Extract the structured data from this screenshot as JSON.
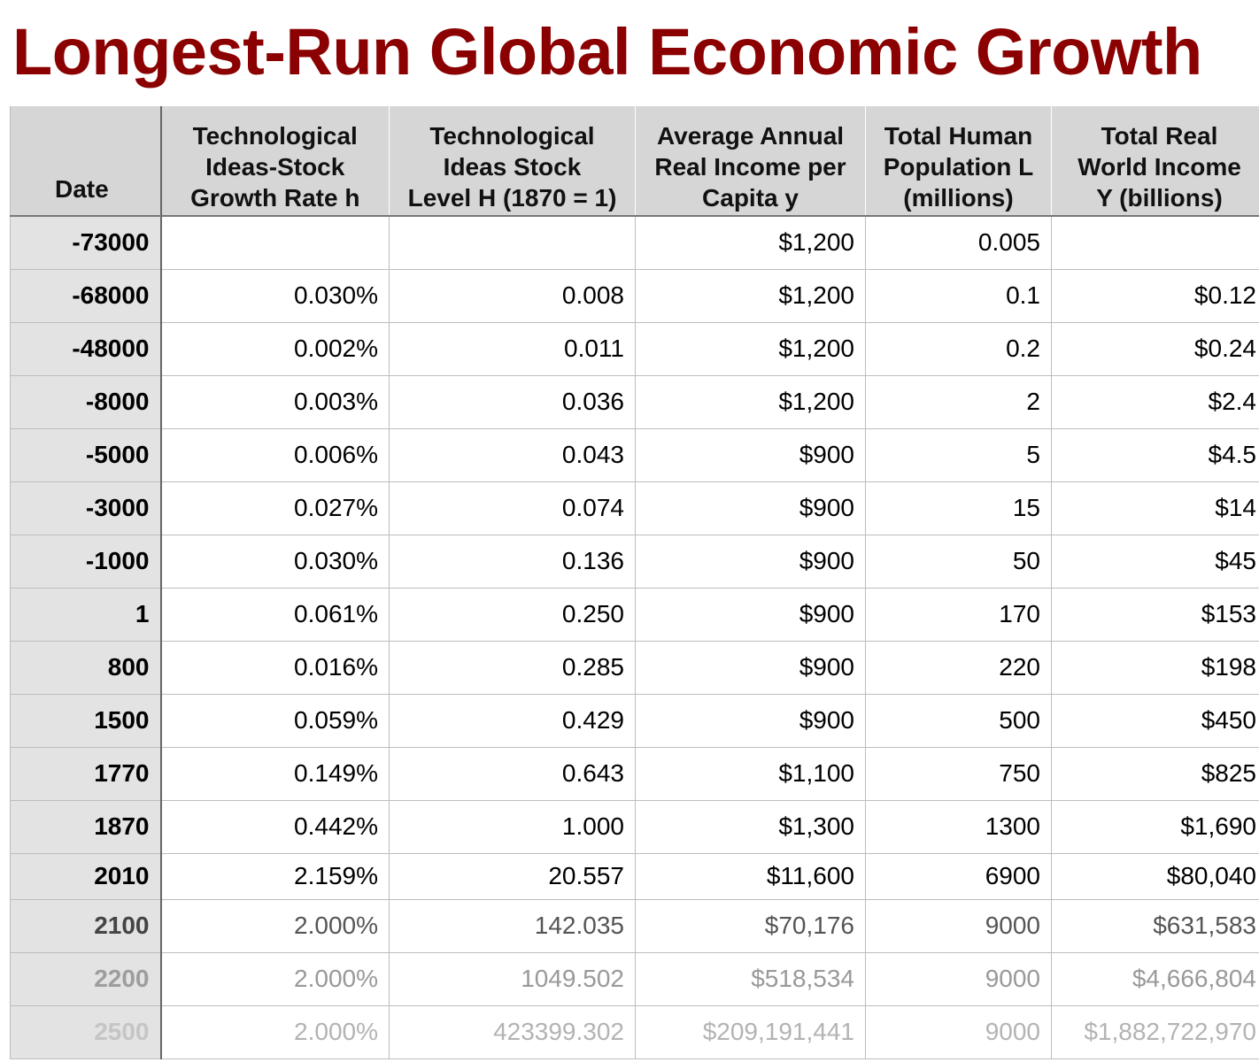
{
  "title": "Longest-Run Global Economic Growth",
  "chart_data": {
    "type": "table",
    "title": "Longest-Run Global Economic Growth",
    "columns": [
      "Date",
      "Technological Ideas-Stock Growth Rate h",
      "Technological Ideas Stock Level H (1870 = 1)",
      "Average Annual Real Income per Capita y",
      "Total Human Population L (millions)",
      "Total Real World Income Y (billions)"
    ],
    "rows": [
      [
        "-73000",
        "",
        "",
        "$1,200",
        "0.005",
        ""
      ],
      [
        "-68000",
        "0.030%",
        "0.008",
        "$1,200",
        "0.1",
        "$0.12"
      ],
      [
        "-48000",
        "0.002%",
        "0.011",
        "$1,200",
        "0.2",
        "$0.24"
      ],
      [
        "-8000",
        "0.003%",
        "0.036",
        "$1,200",
        "2",
        "$2.4"
      ],
      [
        "-5000",
        "0.006%",
        "0.043",
        "$900",
        "5",
        "$4.5"
      ],
      [
        "-3000",
        "0.027%",
        "0.074",
        "$900",
        "15",
        "$14"
      ],
      [
        "-1000",
        "0.030%",
        "0.136",
        "$900",
        "50",
        "$45"
      ],
      [
        "1",
        "0.061%",
        "0.250",
        "$900",
        "170",
        "$153"
      ],
      [
        "800",
        "0.016%",
        "0.285",
        "$900",
        "220",
        "$198"
      ],
      [
        "1500",
        "0.059%",
        "0.429",
        "$900",
        "500",
        "$450"
      ],
      [
        "1770",
        "0.149%",
        "0.643",
        "$1,100",
        "750",
        "$825"
      ],
      [
        "1870",
        "0.442%",
        "1.000",
        "$1,300",
        "1300",
        "$1,690"
      ],
      [
        "2010",
        "2.159%",
        "20.557",
        "$11,600",
        "6900",
        "$80,040"
      ],
      [
        "2100",
        "2.000%",
        "142.035",
        "$70,176",
        "9000",
        "$631,583"
      ],
      [
        "2200",
        "2.000%",
        "1049.502",
        "$518,534",
        "9000",
        "$4,666,804"
      ],
      [
        "2500",
        "2.000%",
        "423399.302",
        "$209,191,441",
        "9000",
        "$1,882,722,970"
      ]
    ]
  },
  "colors": {
    "title": "#8b0000",
    "header_bg": "#d6d6d6",
    "date_col_bg": "#e3e3e3"
  }
}
